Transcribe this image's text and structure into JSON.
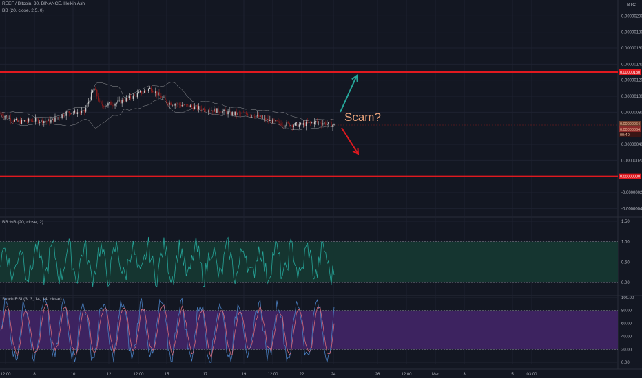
{
  "header": {
    "symbol_line": "REEF / Bitcoin, 30, BINANCE, Heikin Ashi",
    "bb_line": "BB (20, close, 2.5, 0)",
    "pct_b_line": "BB %B (20, close, 2)",
    "stoch_line": "Stoch RSI (3, 3, 14, 14, close)",
    "currency": "BTC"
  },
  "annotation": {
    "text": "Scam?"
  },
  "colors": {
    "background": "#131722",
    "grid": "#1e2230",
    "resistance_line": "#e0191f",
    "candle_up": "#c8c8c8",
    "candle_down": "#8b1a1a",
    "bb_line": "#cfcfcf",
    "pct_b_line": "#26a69a",
    "pct_b_fill": "#153530",
    "stoch_k": "#4a7fc1",
    "stoch_d": "#d46a7a",
    "stoch_fill": "#3d2360",
    "arrow_up": "#26a69a",
    "arrow_down": "#e0191f",
    "annotation": "#e8a27a"
  },
  "chart_data": [
    {
      "type": "line",
      "name": "price",
      "y_ticks": [
        "0.00000200",
        "0.00000180",
        "0.00000160",
        "0.00000140",
        "0.00000120",
        "0.00000100",
        "0.00000080",
        "0.00000040",
        "0.00000020",
        "-0.00000020",
        "-0.00000040"
      ],
      "y_tick_values": [
        2e-06,
        1.8e-06,
        1.6e-06,
        1.4e-06,
        1.2e-06,
        1e-06,
        8e-07,
        4e-07,
        2e-07,
        -2e-07,
        -4e-07
      ],
      "ylim": [
        -5e-07,
        2.2e-06
      ],
      "horizontal_lines": [
        {
          "value": 1.3e-06,
          "label": "0.00000130"
        },
        {
          "value": 0.0,
          "label": "0.00000000"
        }
      ],
      "price_labels": [
        "0.00000064",
        "0.00000064",
        "00:40"
      ],
      "last_price": 6.4e-07,
      "x_ticks": [
        "12:00",
        "8",
        "10",
        "12",
        "12:00",
        "15",
        "17",
        "19",
        "12:00",
        "22",
        "24",
        "26",
        "12:00",
        "Mar",
        "3",
        "5",
        "03:00"
      ],
      "approx_path": [
        [
          0,
          7.8e-07
        ],
        [
          0.05,
          6.8e-07
        ],
        [
          0.1,
          7e-07
        ],
        [
          0.15,
          6.9e-07
        ],
        [
          0.2,
          8e-07
        ],
        [
          0.25,
          8e-07
        ],
        [
          0.28,
          1.1e-06
        ],
        [
          0.3,
          8.8e-07
        ],
        [
          0.35,
          9.2e-07
        ],
        [
          0.4,
          1e-06
        ],
        [
          0.45,
          1.1e-06
        ],
        [
          0.5,
          9.2e-07
        ],
        [
          0.6,
          8.5e-07
        ],
        [
          0.65,
          8.2e-07
        ],
        [
          0.7,
          7.8e-07
        ],
        [
          0.75,
          7.8e-07
        ],
        [
          0.8,
          7e-07
        ],
        [
          0.85,
          6.5e-07
        ],
        [
          0.9,
          6.4e-07
        ],
        [
          0.95,
          6.8e-07
        ],
        [
          1,
          6.4e-07
        ]
      ]
    },
    {
      "type": "line",
      "name": "BB %B",
      "y_ticks": [
        "1.50",
        "1.00",
        "0.50",
        "0.00"
      ],
      "y_tick_values": [
        1.5,
        1.0,
        0.5,
        0.0
      ],
      "ylim": [
        -0.3,
        1.6
      ],
      "band": [
        0,
        1
      ]
    },
    {
      "type": "line",
      "name": "Stoch RSI",
      "y_ticks": [
        "100.00",
        "80.00",
        "60.00",
        "40.00",
        "20.00",
        "0.00"
      ],
      "y_tick_values": [
        100,
        80,
        60,
        40,
        20,
        0
      ],
      "ylim": [
        -3,
        103
      ],
      "band": [
        20,
        80
      ]
    }
  ]
}
